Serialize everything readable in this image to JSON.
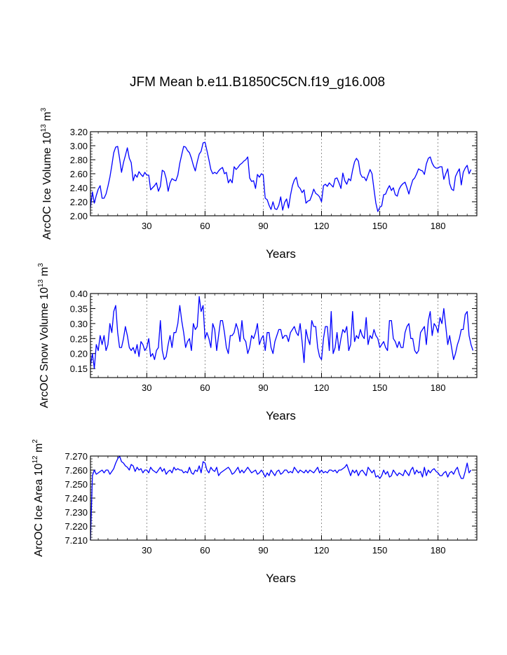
{
  "title": "JFM Mean b.e11.B1850C5CN.f19_g16.008",
  "chart_data": [
    {
      "type": "line",
      "title": "JFM Mean b.e11.B1850C5CN.f19_g16.008",
      "xlabel": "Years",
      "ylabel": "ArcOC Ice Volume 10^13 m^3",
      "ylabel_parts": {
        "text": "ArcOC Ice Volume 10",
        "exp": "13",
        "unit": " m",
        "unit_exp": "3"
      },
      "xlim": [
        1,
        200
      ],
      "ylim": [
        2.0,
        3.2
      ],
      "xticks": [
        30,
        60,
        90,
        120,
        150,
        180
      ],
      "yticks": [
        2.0,
        2.2,
        2.4,
        2.6,
        2.8,
        3.0,
        3.2
      ],
      "ytick_labels": [
        "2.00",
        "2.20",
        "2.40",
        "2.60",
        "2.80",
        "3.00",
        "3.20"
      ],
      "grid": "dashed vertical at x ticks",
      "color": "#0000ff",
      "series": [
        {
          "values": [
            2.12,
            2.34,
            2.18,
            2.29,
            2.38,
            2.43,
            2.25,
            2.25,
            2.31,
            2.42,
            2.55,
            2.72,
            2.9,
            2.98,
            2.99,
            2.82,
            2.62,
            2.76,
            2.86,
            2.97,
            2.82,
            2.76,
            2.5,
            2.59,
            2.55,
            2.63,
            2.59,
            2.56,
            2.62,
            2.58,
            2.58,
            2.37,
            2.4,
            2.43,
            2.47,
            2.35,
            2.42,
            2.65,
            2.63,
            2.53,
            2.35,
            2.47,
            2.53,
            2.51,
            2.5,
            2.58,
            2.75,
            2.87,
            2.99,
            2.98,
            2.93,
            2.9,
            2.82,
            2.72,
            2.64,
            2.77,
            2.88,
            2.92,
            3.04,
            3.05,
            2.93,
            2.8,
            2.66,
            2.6,
            2.62,
            2.6,
            2.64,
            2.67,
            2.69,
            2.6,
            2.62,
            2.47,
            2.52,
            2.47,
            2.7,
            2.66,
            2.69,
            2.73,
            2.75,
            2.78,
            2.8,
            2.84,
            2.54,
            2.49,
            2.5,
            2.39,
            2.59,
            2.55,
            2.6,
            2.58,
            2.25,
            2.23,
            2.15,
            2.09,
            2.2,
            2.1,
            2.09,
            2.15,
            2.27,
            2.08,
            2.19,
            2.24,
            2.11,
            2.29,
            2.43,
            2.51,
            2.55,
            2.42,
            2.39,
            2.33,
            2.37,
            2.18,
            2.21,
            2.22,
            2.29,
            2.38,
            2.32,
            2.3,
            2.27,
            2.2,
            2.43,
            2.45,
            2.42,
            2.47,
            2.44,
            2.41,
            2.53,
            2.54,
            2.47,
            2.39,
            2.61,
            2.5,
            2.45,
            2.53,
            2.5,
            2.65,
            2.77,
            2.82,
            2.78,
            2.6,
            2.55,
            2.55,
            2.5,
            2.58,
            2.66,
            2.6,
            2.38,
            2.18,
            2.06,
            2.12,
            2.14,
            2.3,
            2.31,
            2.38,
            2.43,
            2.36,
            2.4,
            2.3,
            2.28,
            2.38,
            2.43,
            2.46,
            2.48,
            2.4,
            2.31,
            2.42,
            2.51,
            2.54,
            2.6,
            2.67,
            2.65,
            2.64,
            2.59,
            2.74,
            2.82,
            2.84,
            2.75,
            2.7,
            2.68,
            2.68,
            2.7,
            2.7,
            2.52,
            2.6,
            2.67,
            2.46,
            2.38,
            2.36,
            2.56,
            2.62,
            2.67,
            2.44,
            2.62,
            2.68,
            2.72,
            2.6,
            2.66
          ]
        }
      ]
    },
    {
      "type": "line",
      "xlabel": "Years",
      "ylabel": "ArcOC Snow Volume 10^13 m^3",
      "ylabel_parts": {
        "text": "ArcOC Snow Volume 10",
        "exp": "13",
        "unit": " m",
        "unit_exp": "3"
      },
      "xlim": [
        1,
        200
      ],
      "ylim": [
        0.12,
        0.4
      ],
      "xticks": [
        30,
        60,
        90,
        120,
        150,
        180
      ],
      "yticks": [
        0.15,
        0.2,
        0.25,
        0.3,
        0.35,
        0.4
      ],
      "ytick_labels": [
        "0.15",
        "0.20",
        "0.25",
        "0.30",
        "0.35",
        "0.40"
      ],
      "grid": "dashed vertical at x ticks",
      "color": "#0000ff",
      "series": [
        {
          "values": [
            0.16,
            0.2,
            0.15,
            0.23,
            0.21,
            0.26,
            0.23,
            0.26,
            0.21,
            0.23,
            0.3,
            0.27,
            0.34,
            0.36,
            0.27,
            0.22,
            0.22,
            0.25,
            0.29,
            0.26,
            0.22,
            0.21,
            0.22,
            0.2,
            0.23,
            0.19,
            0.24,
            0.23,
            0.21,
            0.22,
            0.25,
            0.19,
            0.2,
            0.18,
            0.21,
            0.22,
            0.31,
            0.21,
            0.18,
            0.19,
            0.23,
            0.26,
            0.22,
            0.27,
            0.27,
            0.3,
            0.36,
            0.31,
            0.27,
            0.22,
            0.24,
            0.25,
            0.21,
            0.3,
            0.28,
            0.29,
            0.39,
            0.34,
            0.36,
            0.25,
            0.27,
            0.25,
            0.22,
            0.3,
            0.28,
            0.21,
            0.26,
            0.31,
            0.31,
            0.27,
            0.22,
            0.2,
            0.26,
            0.26,
            0.27,
            0.3,
            0.28,
            0.24,
            0.31,
            0.25,
            0.24,
            0.2,
            0.22,
            0.26,
            0.25,
            0.27,
            0.3,
            0.23,
            0.25,
            0.26,
            0.21,
            0.27,
            0.27,
            0.22,
            0.2,
            0.24,
            0.26,
            0.28,
            0.28,
            0.25,
            0.26,
            0.26,
            0.24,
            0.27,
            0.28,
            0.29,
            0.27,
            0.26,
            0.3,
            0.24,
            0.17,
            0.28,
            0.25,
            0.23,
            0.31,
            0.29,
            0.29,
            0.22,
            0.19,
            0.18,
            0.25,
            0.29,
            0.29,
            0.21,
            0.34,
            0.2,
            0.22,
            0.27,
            0.21,
            0.25,
            0.28,
            0.27,
            0.29,
            0.21,
            0.23,
            0.34,
            0.24,
            0.26,
            0.25,
            0.28,
            0.26,
            0.25,
            0.32,
            0.23,
            0.26,
            0.25,
            0.28,
            0.26,
            0.25,
            0.22,
            0.23,
            0.24,
            0.22,
            0.21,
            0.31,
            0.31,
            0.25,
            0.24,
            0.22,
            0.24,
            0.22,
            0.22,
            0.27,
            0.29,
            0.3,
            0.25,
            0.25,
            0.21,
            0.2,
            0.21,
            0.27,
            0.28,
            0.29,
            0.23,
            0.31,
            0.34,
            0.26,
            0.3,
            0.29,
            0.27,
            0.32,
            0.3,
            0.35,
            0.29,
            0.23,
            0.26,
            0.22,
            0.18,
            0.2,
            0.23,
            0.25,
            0.28,
            0.28,
            0.33,
            0.34,
            0.26,
            0.23,
            0.21
          ]
        }
      ]
    },
    {
      "type": "line",
      "xlabel": "Years",
      "ylabel": "ArcOC Ice Area 10^12 m^2",
      "ylabel_parts": {
        "text": "ArcOC Ice Area 10",
        "exp": "12",
        "unit": " m",
        "unit_exp": "2"
      },
      "xlim": [
        1,
        200
      ],
      "ylim": [
        7.21,
        7.27
      ],
      "xticks": [
        30,
        60,
        90,
        120,
        150,
        180
      ],
      "yticks": [
        7.21,
        7.22,
        7.23,
        7.24,
        7.25,
        7.26,
        7.27
      ],
      "ytick_labels": [
        "7.210",
        "7.220",
        "7.230",
        "7.240",
        "7.250",
        "7.260",
        "7.270"
      ],
      "grid": "dashed vertical at x ticks",
      "color": "#0000ff",
      "series": [
        {
          "values": [
            7.21,
            7.256,
            7.26,
            7.257,
            7.258,
            7.259,
            7.26,
            7.258,
            7.26,
            7.26,
            7.257,
            7.259,
            7.261,
            7.265,
            7.268,
            7.27,
            7.266,
            7.265,
            7.263,
            7.262,
            7.26,
            7.264,
            7.263,
            7.259,
            7.262,
            7.26,
            7.261,
            7.258,
            7.26,
            7.26,
            7.258,
            7.262,
            7.26,
            7.259,
            7.258,
            7.26,
            7.262,
            7.259,
            7.261,
            7.257,
            7.259,
            7.26,
            7.258,
            7.262,
            7.26,
            7.261,
            7.26,
            7.26,
            7.258,
            7.259,
            7.258,
            7.262,
            7.258,
            7.257,
            7.26,
            7.259,
            7.263,
            7.258,
            7.266,
            7.265,
            7.26,
            7.258,
            7.262,
            7.26,
            7.259,
            7.262,
            7.256,
            7.258,
            7.259,
            7.26,
            7.261,
            7.262,
            7.26,
            7.257,
            7.258,
            7.26,
            7.262,
            7.258,
            7.26,
            7.258,
            7.26,
            7.262,
            7.26,
            7.258,
            7.259,
            7.26,
            7.257,
            7.258,
            7.26,
            7.258,
            7.255,
            7.258,
            7.256,
            7.26,
            7.258,
            7.256,
            7.259,
            7.26,
            7.257,
            7.258,
            7.26,
            7.26,
            7.258,
            7.259,
            7.258,
            7.262,
            7.26,
            7.258,
            7.26,
            7.259,
            7.258,
            7.26,
            7.258,
            7.26,
            7.259,
            7.258,
            7.26,
            7.262,
            7.258,
            7.26,
            7.258,
            7.259,
            7.258,
            7.26,
            7.26,
            7.259,
            7.26,
            7.258,
            7.26,
            7.26,
            7.261,
            7.262,
            7.264,
            7.26,
            7.256,
            7.26,
            7.258,
            7.26,
            7.256,
            7.259,
            7.26,
            7.258,
            7.256,
            7.262,
            7.26,
            7.258,
            7.26,
            7.255,
            7.256,
            7.254,
            7.256,
            7.26,
            7.257,
            7.259,
            7.255,
            7.256,
            7.26,
            7.258,
            7.256,
            7.258,
            7.257,
            7.256,
            7.26,
            7.258,
            7.256,
            7.26,
            7.262,
            7.257,
            7.26,
            7.258,
            7.259,
            7.255,
            7.262,
            7.256,
            7.26,
            7.258,
            7.26,
            7.261,
            7.259,
            7.258,
            7.256,
            7.256,
            7.258,
            7.259,
            7.255,
            7.258,
            7.259,
            7.257,
            7.26,
            7.262,
            7.257,
            7.254,
            7.254,
            7.259,
            7.265,
            7.258,
            7.26
          ]
        }
      ]
    }
  ]
}
